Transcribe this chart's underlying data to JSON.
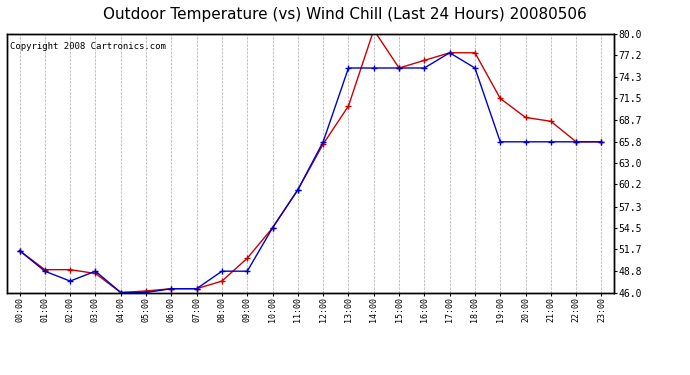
{
  "title": "Outdoor Temperature (vs) Wind Chill (Last 24 Hours) 20080506",
  "copyright": "Copyright 2008 Cartronics.com",
  "hours": [
    "00:00",
    "01:00",
    "02:00",
    "03:00",
    "04:00",
    "05:00",
    "06:00",
    "07:00",
    "08:00",
    "09:00",
    "10:00",
    "11:00",
    "12:00",
    "13:00",
    "14:00",
    "15:00",
    "16:00",
    "17:00",
    "18:00",
    "19:00",
    "20:00",
    "21:00",
    "22:00",
    "23:00"
  ],
  "temp": [
    51.5,
    49.0,
    49.0,
    48.5,
    46.0,
    46.2,
    46.5,
    46.5,
    47.5,
    50.5,
    54.5,
    59.5,
    65.5,
    70.5,
    80.5,
    75.5,
    76.5,
    77.5,
    77.5,
    71.5,
    69.0,
    68.5,
    65.8,
    65.8
  ],
  "windchill": [
    51.5,
    48.8,
    47.5,
    48.8,
    46.0,
    46.0,
    46.5,
    46.5,
    48.8,
    48.8,
    54.5,
    59.5,
    65.8,
    75.5,
    75.5,
    75.5,
    75.5,
    77.5,
    75.5,
    65.8,
    65.8,
    65.8,
    65.8,
    65.8
  ],
  "temp_color": "#cc0000",
  "windchill_color": "#0000cc",
  "ylim": [
    46.0,
    80.0
  ],
  "yticks": [
    46.0,
    48.8,
    51.7,
    54.5,
    57.3,
    60.2,
    63.0,
    65.8,
    68.7,
    71.5,
    74.3,
    77.2,
    80.0
  ],
  "bg_color": "#ffffff",
  "grid_color": "#aaaaaa",
  "title_fontsize": 11,
  "copyright_fontsize": 6.5
}
